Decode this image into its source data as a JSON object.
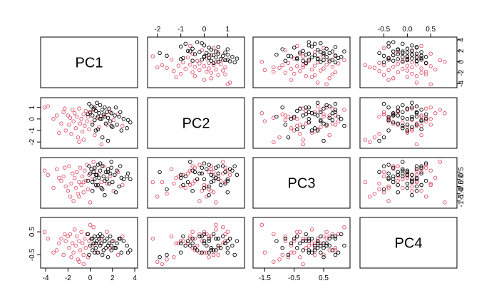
{
  "chart_data": {
    "type": "scatter",
    "kind": "pairs-matrix",
    "variables": [
      "PC1",
      "PC2",
      "PC3",
      "PC4"
    ],
    "groups": [
      {
        "color": "#000000"
      },
      {
        "color": "#DF536B"
      }
    ],
    "ranges": {
      "PC1": [
        -4.2,
        4.0
      ],
      "PC2": [
        -2.3,
        1.6
      ],
      "PC3": [
        -1.8,
        1.3
      ],
      "PC4": [
        -0.95,
        1.0
      ]
    },
    "ticks": {
      "PC1": {
        "values": [
          -4,
          -2,
          0,
          2,
          4
        ],
        "labels": [
          "-4",
          "-2",
          "0",
          "2",
          "4"
        ],
        "side": "bottom"
      },
      "PC2": {
        "values": [
          -2,
          -1,
          0,
          1
        ],
        "labels": [
          "-2",
          "-1",
          "0",
          "1"
        ],
        "side": "top-left"
      },
      "PC3": {
        "values": [
          -1.5,
          -0.5,
          0.5
        ],
        "labels": [
          "-1.5",
          "-0.5",
          "0.5"
        ],
        "side": "bottom"
      },
      "PC3_right": {
        "values": [
          -1.5,
          -1.0,
          -0.5,
          0.0,
          0.5
        ],
        "labels": [
          "-1.5",
          "-1.0",
          "-0.5",
          "0.0",
          "0.5"
        ]
      },
      "PC4": {
        "values": [
          -0.5,
          0.0,
          0.5
        ],
        "labels": [
          "-0.5",
          "0.0",
          "0.5"
        ],
        "side": "top"
      },
      "PC1_right": {
        "values": [
          -4,
          -2,
          0,
          2,
          4
        ],
        "labels": [
          "-4",
          "-2",
          "0",
          "2",
          "4"
        ]
      },
      "PC4_left": {
        "values": [
          -0.5,
          0.5
        ],
        "labels": [
          "-0.5",
          "0.5"
        ]
      }
    },
    "points": {
      "columns": [
        "PC1",
        "PC2",
        "PC3",
        "PC4",
        "group"
      ],
      "rows": [
        [
          -4.1,
          1.0,
          0.6,
          0.5,
          1
        ],
        [
          -3.8,
          1.1,
          0.3,
          0.2,
          1
        ],
        [
          -3.0,
          0.3,
          0.7,
          -0.3,
          1
        ],
        [
          -2.6,
          -0.4,
          -0.1,
          0.2,
          1
        ],
        [
          -2.4,
          0.6,
          0.2,
          -0.5,
          1
        ],
        [
          -2.2,
          -1.0,
          -0.5,
          0.1,
          1
        ],
        [
          -2.0,
          0.3,
          -0.8,
          0.3,
          1
        ],
        [
          -1.9,
          -0.5,
          0.9,
          -0.2,
          1
        ],
        [
          -1.8,
          0.1,
          -1.2,
          0.4,
          1
        ],
        [
          -1.7,
          -1.3,
          -0.3,
          -0.6,
          1
        ],
        [
          -1.6,
          0.8,
          0.4,
          0.0,
          1
        ],
        [
          -1.5,
          -0.2,
          -1.5,
          -0.4,
          1
        ],
        [
          -1.4,
          0.5,
          0.1,
          0.6,
          1
        ],
        [
          -1.3,
          -0.8,
          -0.6,
          -0.1,
          1
        ],
        [
          -1.2,
          0.2,
          0.5,
          0.3,
          1
        ],
        [
          -1.1,
          -1.6,
          -1.0,
          -0.7,
          1
        ],
        [
          -1.0,
          0.9,
          -0.2,
          0.1,
          1
        ],
        [
          -0.9,
          -0.4,
          0.8,
          -0.3,
          1
        ],
        [
          -0.8,
          0.0,
          -0.4,
          0.5,
          1
        ],
        [
          -0.7,
          -1.1,
          0.2,
          0.0,
          1
        ],
        [
          -0.6,
          0.4,
          -0.9,
          -0.5,
          1
        ],
        [
          -0.5,
          -0.6,
          0.6,
          0.2,
          1
        ],
        [
          -0.4,
          0.7,
          -0.1,
          -0.2,
          1
        ],
        [
          -0.3,
          -0.2,
          1.0,
          0.4,
          1
        ],
        [
          -0.2,
          0.2,
          -0.7,
          -0.6,
          1
        ],
        [
          -0.1,
          -0.9,
          0.3,
          0.1,
          1
        ],
        [
          0.0,
          0.5,
          -1.6,
          0.8,
          1
        ],
        [
          0.2,
          -0.3,
          0.0,
          -0.1,
          1
        ],
        [
          0.4,
          -1.4,
          0.7,
          0.3,
          1
        ],
        [
          0.6,
          0.1,
          -0.5,
          -0.4,
          1
        ],
        [
          0.8,
          -0.7,
          0.4,
          0.0,
          1
        ],
        [
          1.0,
          -2.2,
          -0.2,
          0.2,
          1
        ],
        [
          1.2,
          0.3,
          0.9,
          -0.3,
          1
        ],
        [
          1.5,
          -0.5,
          -0.3,
          0.5,
          1
        ],
        [
          1.8,
          0.6,
          0.2,
          -0.2,
          1
        ],
        [
          2.1,
          -0.1,
          -0.8,
          0.1,
          1
        ],
        [
          2.5,
          0.4,
          0.5,
          -0.5,
          1
        ],
        [
          2.9,
          -0.6,
          -0.4,
          0.3,
          1
        ],
        [
          -2.8,
          -1.2,
          0.1,
          0.0,
          1
        ],
        [
          -3.3,
          0.0,
          -0.6,
          -0.4,
          1
        ],
        [
          -2.3,
          0.9,
          0.8,
          0.4,
          1
        ],
        [
          -1.0,
          -2.0,
          -1.2,
          -0.8,
          1
        ],
        [
          0.3,
          0.8,
          1.2,
          0.7,
          1
        ],
        [
          -0.6,
          -1.8,
          -0.2,
          -0.9,
          1
        ],
        [
          0.0,
          0.6,
          0.4,
          -0.1,
          0
        ],
        [
          0.1,
          1.1,
          0.7,
          0.2,
          0
        ],
        [
          0.2,
          0.3,
          -0.2,
          -0.3,
          0
        ],
        [
          0.3,
          0.9,
          0.5,
          0.0,
          0
        ],
        [
          0.4,
          -0.1,
          0.8,
          0.3,
          0
        ],
        [
          0.5,
          0.7,
          -0.4,
          -0.2,
          0
        ],
        [
          0.6,
          1.4,
          0.3,
          0.1,
          0
        ],
        [
          0.7,
          0.2,
          1.0,
          -0.4,
          0
        ],
        [
          0.8,
          0.5,
          0.1,
          0.2,
          0
        ],
        [
          0.9,
          1.2,
          0.6,
          -0.1,
          0
        ],
        [
          1.0,
          0.0,
          -0.6,
          0.0,
          0
        ],
        [
          1.1,
          0.8,
          0.9,
          0.3,
          0
        ],
        [
          1.2,
          0.4,
          0.2,
          -0.3,
          0
        ],
        [
          1.3,
          1.0,
          -0.1,
          0.1,
          0
        ],
        [
          1.4,
          -0.4,
          0.5,
          -0.2,
          0
        ],
        [
          1.5,
          0.6,
          0.0,
          0.2,
          0
        ],
        [
          1.6,
          0.1,
          0.7,
          -0.1,
          0
        ],
        [
          1.7,
          0.9,
          -0.3,
          0.0,
          0
        ],
        [
          1.8,
          -0.2,
          0.4,
          0.3,
          0
        ],
        [
          1.9,
          0.5,
          0.8,
          -0.3,
          0
        ],
        [
          2.0,
          -0.7,
          -0.2,
          0.1,
          0
        ],
        [
          2.2,
          0.3,
          0.3,
          -0.2,
          0
        ],
        [
          2.4,
          -0.5,
          0.6,
          0.0,
          0
        ],
        [
          2.6,
          0.2,
          -0.5,
          0.2,
          0
        ],
        [
          2.8,
          -1.0,
          0.1,
          -0.4,
          0
        ],
        [
          3.0,
          0.0,
          0.0,
          0.1,
          0
        ],
        [
          3.3,
          -0.8,
          0.2,
          -0.1,
          0
        ],
        [
          3.6,
          -0.3,
          0.0,
          -0.3,
          0
        ],
        [
          -0.2,
          0.4,
          -0.1,
          0.4,
          0
        ],
        [
          -0.1,
          1.3,
          0.9,
          -0.5,
          0
        ],
        [
          0.5,
          -1.0,
          0.3,
          0.0,
          0
        ],
        [
          1.1,
          -1.6,
          -0.7,
          -0.5,
          0
        ],
        [
          0.9,
          0.0,
          1.1,
          0.4,
          0
        ],
        [
          0.2,
          -0.5,
          -0.8,
          0.2,
          0
        ],
        [
          2.3,
          1.0,
          -0.9,
          -0.2,
          0
        ],
        [
          1.6,
          -1.9,
          0.5,
          -0.6,
          0
        ],
        [
          0.7,
          -0.9,
          -0.4,
          0.3,
          0
        ],
        [
          3.4,
          -0.1,
          0.4,
          -0.4,
          0
        ],
        [
          1.3,
          0.2,
          -1.1,
          0.1,
          0
        ],
        [
          0.4,
          1.0,
          0.0,
          -0.4,
          0
        ],
        [
          2.7,
          0.6,
          0.9,
          0.2,
          0
        ],
        [
          1.9,
          -0.6,
          1.2,
          -0.1,
          0
        ]
      ]
    },
    "axes": {
      "xlabel": "",
      "ylabel": "",
      "title": ""
    },
    "grid": false,
    "legend": "none"
  }
}
